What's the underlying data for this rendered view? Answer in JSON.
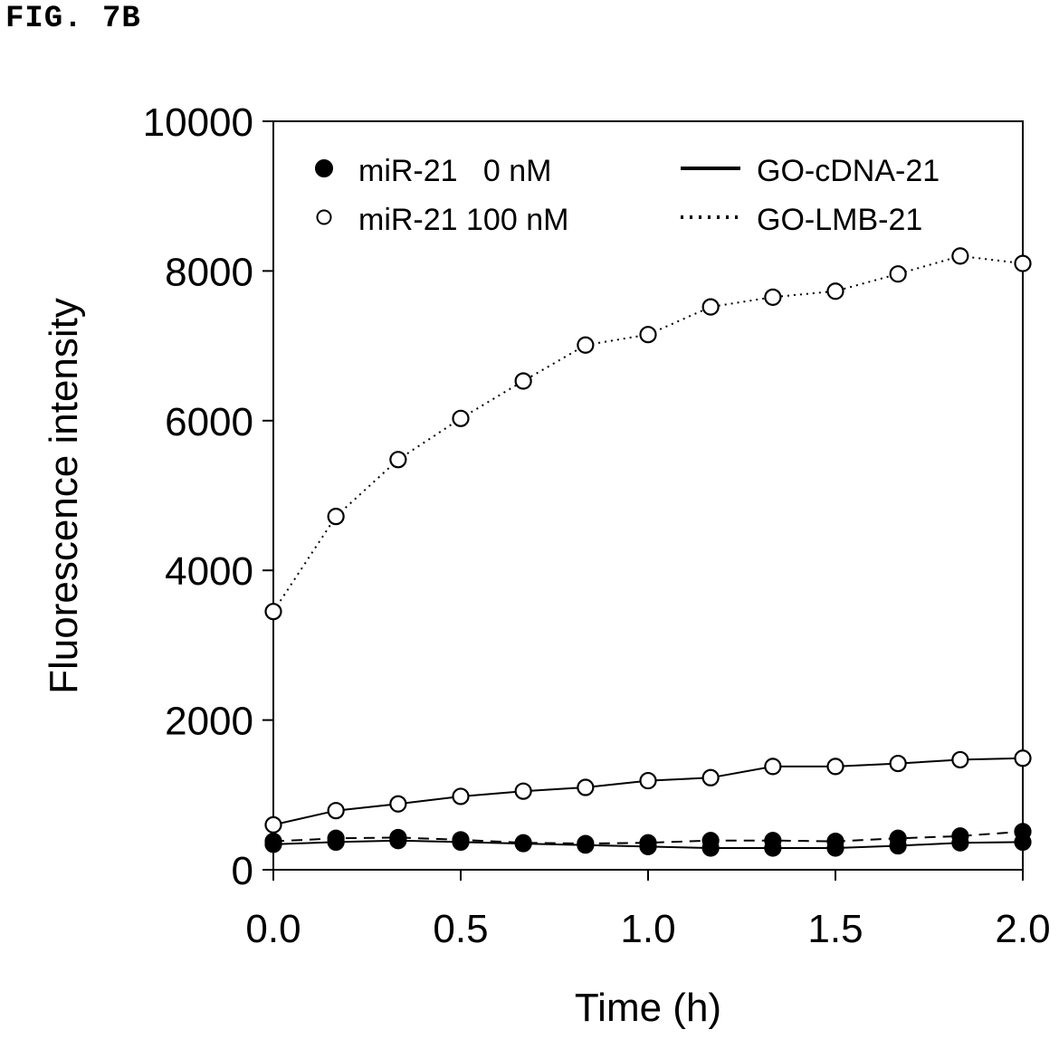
{
  "figure_label": "FIG. 7B",
  "chart_data": {
    "type": "line",
    "title": "",
    "xlabel": "Time (h)",
    "ylabel": "Fluorescence intensity",
    "xlim": [
      0.0,
      2.0
    ],
    "ylim": [
      0,
      10000
    ],
    "xticks": [
      "0.0",
      "0.5",
      "1.0",
      "1.5",
      "2.0"
    ],
    "xtick_values": [
      0.0,
      0.5,
      1.0,
      1.5,
      2.0
    ],
    "yticks": [
      "0",
      "2000",
      "4000",
      "6000",
      "8000",
      "10000"
    ],
    "ytick_values": [
      0,
      2000,
      4000,
      6000,
      8000,
      10000
    ],
    "grid": false,
    "legend_placement": "top",
    "legend": {
      "markers": [
        {
          "label": "miR-21   0 nM",
          "marker": "filled-circle"
        },
        {
          "label": "miR-21 100 nM",
          "marker": "open-circle"
        }
      ],
      "lines": [
        {
          "label": "GO-cDNA-21",
          "style": "solid"
        },
        {
          "label": "GO-LMB-21",
          "style": "dotted"
        }
      ]
    },
    "x": [
      0.0,
      0.167,
      0.333,
      0.5,
      0.667,
      0.833,
      1.0,
      1.167,
      1.333,
      1.5,
      1.667,
      1.833,
      2.0
    ],
    "series": [
      {
        "marker": "open-circle",
        "line": "dotted",
        "values": [
          3450,
          4720,
          5480,
          6030,
          6530,
          7010,
          7150,
          7520,
          7650,
          7730,
          7960,
          8200,
          8100
        ]
      },
      {
        "marker": "open-circle",
        "line": "solid",
        "values": [
          600,
          790,
          880,
          980,
          1050,
          1100,
          1190,
          1230,
          1380,
          1380,
          1420,
          1470,
          1490
        ]
      },
      {
        "marker": "filled-circle",
        "line": "dashed",
        "values": [
          380,
          420,
          430,
          400,
          360,
          350,
          360,
          390,
          390,
          380,
          420,
          450,
          510
        ]
      },
      {
        "marker": "filled-circle",
        "line": "solid",
        "values": [
          340,
          370,
          390,
          370,
          350,
          330,
          310,
          290,
          290,
          290,
          320,
          360,
          370
        ]
      }
    ],
    "colors": {
      "foreground": "#000000",
      "background": "#ffffff"
    }
  }
}
